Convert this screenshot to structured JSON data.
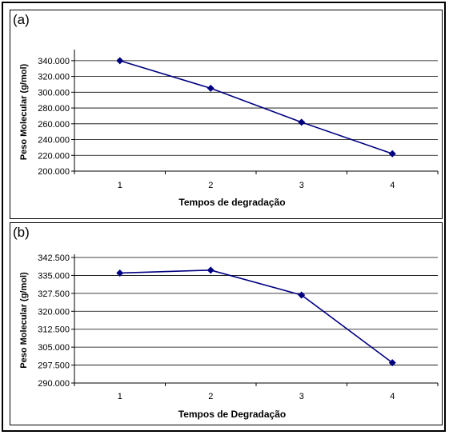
{
  "chart_data": [
    {
      "panel_label": "(a)",
      "type": "line",
      "categories": [
        "1",
        "2",
        "3",
        "4"
      ],
      "values": [
        340000,
        305000,
        262000,
        222000
      ],
      "yticks": [
        "200.000",
        "220.000",
        "240.000",
        "260.000",
        "280.000",
        "300.000",
        "320.000",
        "340.000"
      ],
      "ylim": [
        200000,
        350000
      ],
      "ytick_step": 20000,
      "xlabel": "Tempos de degradação",
      "ylabel": "Peso Molecular (g/mol)",
      "grid": true,
      "line_color": "#000080"
    },
    {
      "panel_label": "(b)",
      "type": "line",
      "categories": [
        "1",
        "2",
        "3",
        "4"
      ],
      "values": [
        336000,
        337200,
        326800,
        298500
      ],
      "yticks": [
        "290.000",
        "297.500",
        "305.000",
        "312.500",
        "320.000",
        "327.500",
        "335.000",
        "342.500"
      ],
      "ylim": [
        290000,
        342500
      ],
      "ytick_step": 7500,
      "xlabel": "Tempos de Degradação",
      "ylabel": "Peso Molecular (g/mol)",
      "grid": true,
      "line_color": "#000080"
    }
  ]
}
